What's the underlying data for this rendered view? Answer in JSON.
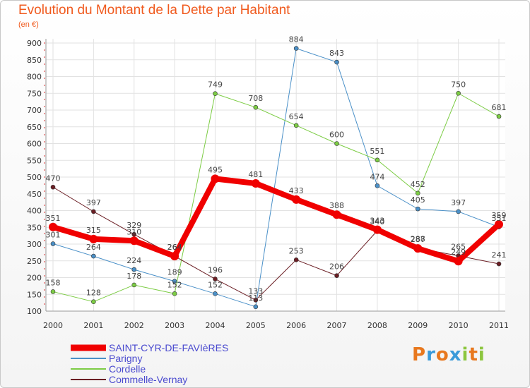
{
  "header": {
    "title": "Evolution du Montant de la Dette par Habitant",
    "subtitle": "(en €)"
  },
  "logo": {
    "text": "Proxiti",
    "letters": [
      {
        "ch": "P",
        "color": "#e8781e"
      },
      {
        "ch": "r",
        "color": "#3a9ad9"
      },
      {
        "ch": "o",
        "color": "#e8781e"
      },
      {
        "ch": "x",
        "color": "#3a9ad9"
      },
      {
        "ch": "i",
        "color": "#8cc63e"
      },
      {
        "ch": "t",
        "color": "#e8781e"
      },
      {
        "ch": "i",
        "color": "#8cc63e"
      }
    ]
  },
  "chart_data": {
    "type": "line",
    "title": "Evolution du Montant de la Dette par Habitant",
    "subtitle": "(en €)",
    "x": [
      "2000",
      "2001",
      "2002",
      "2003",
      "2004",
      "2005",
      "2006",
      "2007",
      "2008",
      "2009",
      "2010",
      "2011"
    ],
    "ylim": [
      100,
      900
    ],
    "yticks": [
      100,
      150,
      200,
      250,
      300,
      350,
      400,
      450,
      500,
      550,
      600,
      650,
      700,
      750,
      800,
      850,
      900
    ],
    "grid": true,
    "legend_position": "bottom-left",
    "series": [
      {
        "name": "SAINT-CYR-DE-FAVIèRES",
        "color": "#f00000",
        "width": 8,
        "values": [
          351,
          315,
          310,
          264,
          495,
          481,
          433,
          388,
          343,
          287,
          249,
          359
        ]
      },
      {
        "name": "Parigny",
        "color": "#4a90c8",
        "width": 1,
        "values": [
          301,
          264,
          224,
          189,
          152,
          113,
          884,
          843,
          474,
          405,
          397,
          351
        ]
      },
      {
        "name": "Cordelle",
        "color": "#7ccc44",
        "width": 1,
        "values": [
          158,
          128,
          178,
          152,
          749,
          708,
          654,
          600,
          551,
          452,
          750,
          681
        ]
      },
      {
        "name": "Commelle-Vernay",
        "color": "#6b1e24",
        "width": 1,
        "values": [
          470,
          397,
          329,
          264,
          196,
          133,
          253,
          206,
          340,
          288,
          265,
          241
        ]
      }
    ]
  }
}
